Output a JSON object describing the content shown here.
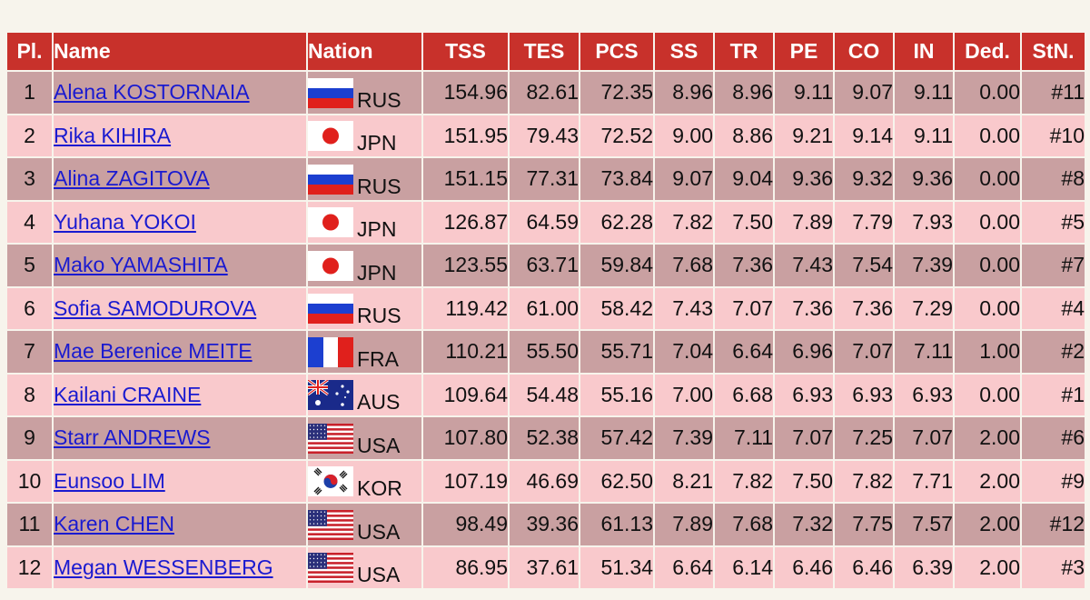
{
  "table": {
    "headers": [
      "Pl.",
      "Name",
      "Nation",
      "TSS",
      "TES",
      "PCS",
      "SS",
      "TR",
      "PE",
      "CO",
      "IN",
      "Ded.",
      "StN."
    ],
    "rows": [
      {
        "pl": "1",
        "name": "Alena KOSTORNAIA",
        "flag": "russia-flag-icon",
        "nation": "RUS",
        "tss": "154.96",
        "tes": "82.61",
        "pcs": "72.35",
        "ss": "8.96",
        "tr": "8.96",
        "pe": "9.11",
        "co": "9.07",
        "in": "9.11",
        "ded": "0.00",
        "stn": "#11"
      },
      {
        "pl": "2",
        "name": "Rika KIHIRA",
        "flag": "japan-flag-icon",
        "nation": "JPN",
        "tss": "151.95",
        "tes": "79.43",
        "pcs": "72.52",
        "ss": "9.00",
        "tr": "8.86",
        "pe": "9.21",
        "co": "9.14",
        "in": "9.11",
        "ded": "0.00",
        "stn": "#10"
      },
      {
        "pl": "3",
        "name": "Alina ZAGITOVA",
        "flag": "russia-flag-icon",
        "nation": "RUS",
        "tss": "151.15",
        "tes": "77.31",
        "pcs": "73.84",
        "ss": "9.07",
        "tr": "9.04",
        "pe": "9.36",
        "co": "9.32",
        "in": "9.36",
        "ded": "0.00",
        "stn": "#8"
      },
      {
        "pl": "4",
        "name": "Yuhana YOKOI",
        "flag": "japan-flag-icon",
        "nation": "JPN",
        "tss": "126.87",
        "tes": "64.59",
        "pcs": "62.28",
        "ss": "7.82",
        "tr": "7.50",
        "pe": "7.89",
        "co": "7.79",
        "in": "7.93",
        "ded": "0.00",
        "stn": "#5"
      },
      {
        "pl": "5",
        "name": "Mako YAMASHITA",
        "flag": "japan-flag-icon",
        "nation": "JPN",
        "tss": "123.55",
        "tes": "63.71",
        "pcs": "59.84",
        "ss": "7.68",
        "tr": "7.36",
        "pe": "7.43",
        "co": "7.54",
        "in": "7.39",
        "ded": "0.00",
        "stn": "#7"
      },
      {
        "pl": "6",
        "name": "Sofia SAMODUROVA",
        "flag": "russia-flag-icon",
        "nation": "RUS",
        "tss": "119.42",
        "tes": "61.00",
        "pcs": "58.42",
        "ss": "7.43",
        "tr": "7.07",
        "pe": "7.36",
        "co": "7.36",
        "in": "7.29",
        "ded": "0.00",
        "stn": "#4"
      },
      {
        "pl": "7",
        "name": "Mae Berenice MEITE",
        "flag": "france-flag-icon",
        "nation": "FRA",
        "tss": "110.21",
        "tes": "55.50",
        "pcs": "55.71",
        "ss": "7.04",
        "tr": "6.64",
        "pe": "6.96",
        "co": "7.07",
        "in": "7.11",
        "ded": "1.00",
        "stn": "#2"
      },
      {
        "pl": "8",
        "name": "Kailani CRAINE",
        "flag": "australia-flag-icon",
        "nation": "AUS",
        "tss": "109.64",
        "tes": "54.48",
        "pcs": "55.16",
        "ss": "7.00",
        "tr": "6.68",
        "pe": "6.93",
        "co": "6.93",
        "in": "6.93",
        "ded": "0.00",
        "stn": "#1"
      },
      {
        "pl": "9",
        "name": "Starr ANDREWS",
        "flag": "usa-flag-icon",
        "nation": "USA",
        "tss": "107.80",
        "tes": "52.38",
        "pcs": "57.42",
        "ss": "7.39",
        "tr": "7.11",
        "pe": "7.07",
        "co": "7.25",
        "in": "7.07",
        "ded": "2.00",
        "stn": "#6"
      },
      {
        "pl": "10",
        "name": "Eunsoo LIM",
        "flag": "korea-flag-icon",
        "nation": "KOR",
        "tss": "107.19",
        "tes": "46.69",
        "pcs": "62.50",
        "ss": "8.21",
        "tr": "7.82",
        "pe": "7.50",
        "co": "7.82",
        "in": "7.71",
        "ded": "2.00",
        "stn": "#9"
      },
      {
        "pl": "11",
        "name": "Karen CHEN",
        "flag": "usa-flag-icon",
        "nation": "USA",
        "tss": "98.49",
        "tes": "39.36",
        "pcs": "61.13",
        "ss": "7.89",
        "tr": "7.68",
        "pe": "7.32",
        "co": "7.75",
        "in": "7.57",
        "ded": "2.00",
        "stn": "#12"
      },
      {
        "pl": "12",
        "name": "Megan WESSENBERG",
        "flag": "usa-flag-icon",
        "nation": "USA",
        "tss": "86.95",
        "tes": "37.61",
        "pcs": "51.34",
        "ss": "6.64",
        "tr": "6.14",
        "pe": "6.46",
        "co": "6.46",
        "in": "6.39",
        "ded": "2.00",
        "stn": "#3"
      }
    ]
  },
  "colors": {
    "header_bg": "#c8312b",
    "row_odd": "#c9a0a1",
    "row_even": "#f9c9cc",
    "link": "#1a1ad0",
    "page_bg": "#f7f4ec"
  }
}
